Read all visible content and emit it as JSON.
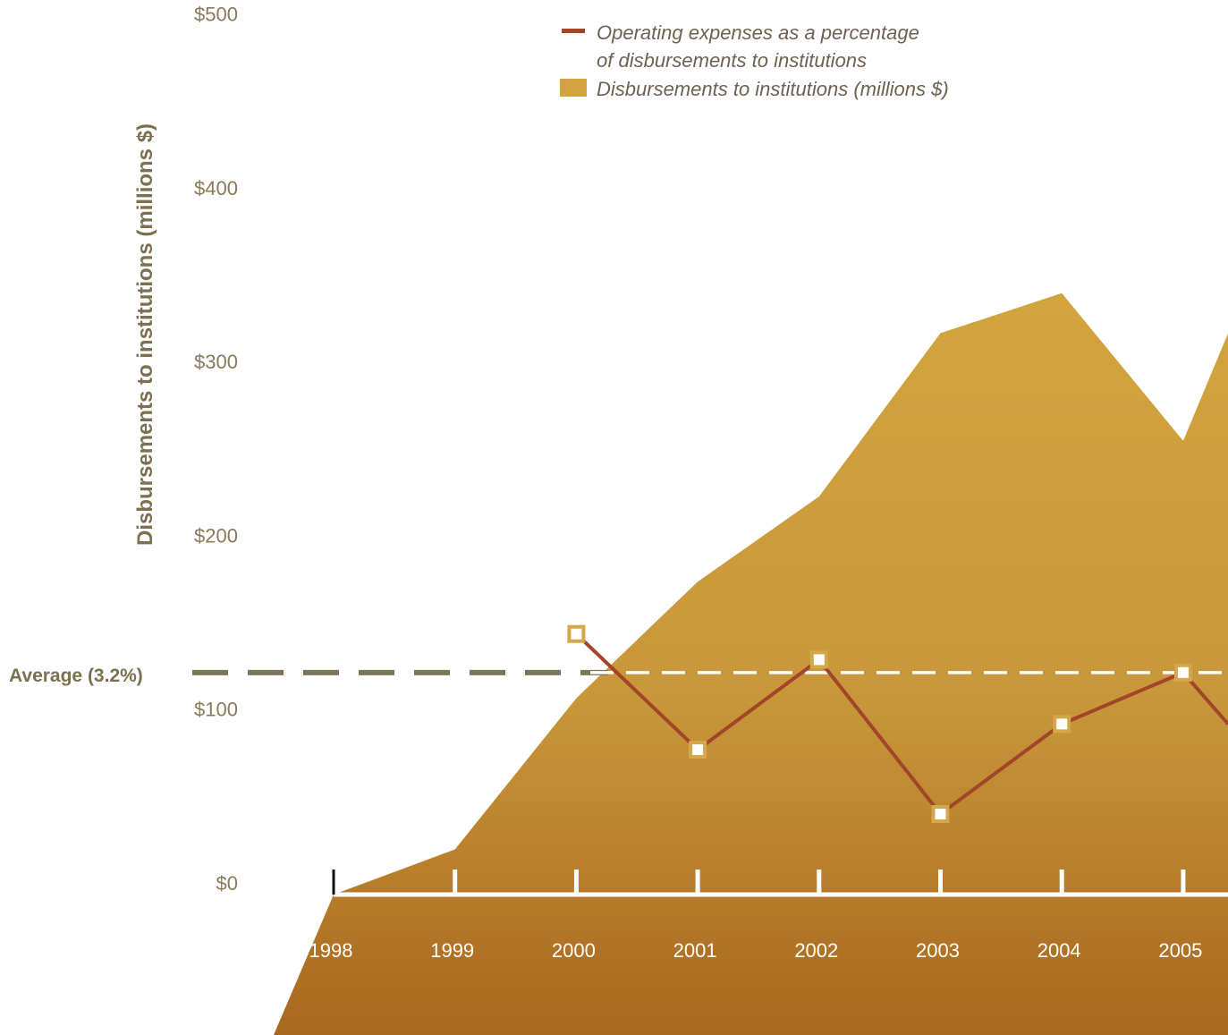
{
  "colors": {
    "area_top": "#d2a43e",
    "area_bottom": "#a8671f",
    "line": "#a2452a",
    "marker_border": "#d4a84a",
    "average": "#7d7556",
    "tick_text": "#8a7a5a"
  },
  "legend": {
    "line_label_1": "Operating expenses as a percentage",
    "line_label_2": "of disbursements to institutions",
    "area_label": "Disbursements to institutions (millions $)"
  },
  "chart_data": {
    "type": "area",
    "ylabel": "Disbursements to institutions (millions $)",
    "y_ticks": [
      "$0",
      "$100",
      "$200",
      "$300",
      "$400",
      "$500"
    ],
    "ylim": [
      0,
      500
    ],
    "categories": [
      "1998",
      "1999",
      "2000",
      "2001",
      "2002",
      "2003",
      "2004",
      "2005"
    ],
    "area_series": {
      "name": "Disbursements to institutions (millions $)",
      "x": [
        1998,
        1999,
        2000,
        2001,
        2002,
        2003,
        2004,
        2005,
        2005.37
      ],
      "values": [
        0,
        26,
        113,
        180,
        229,
        323,
        346,
        261,
        323
      ]
    },
    "line_series": {
      "name": "Operating expenses as a percentage of disbursements to institutions",
      "x": [
        2000,
        2001,
        2002,
        2003,
        2004,
        2005,
        2005.37
      ],
      "values": [
        3.5,
        2.6,
        3.3,
        2.1,
        2.8,
        3.2,
        2.8
      ]
    },
    "average": {
      "label": "Average (3.2%)",
      "value": 3.2
    },
    "grid": false,
    "legend_position": "top-center"
  }
}
